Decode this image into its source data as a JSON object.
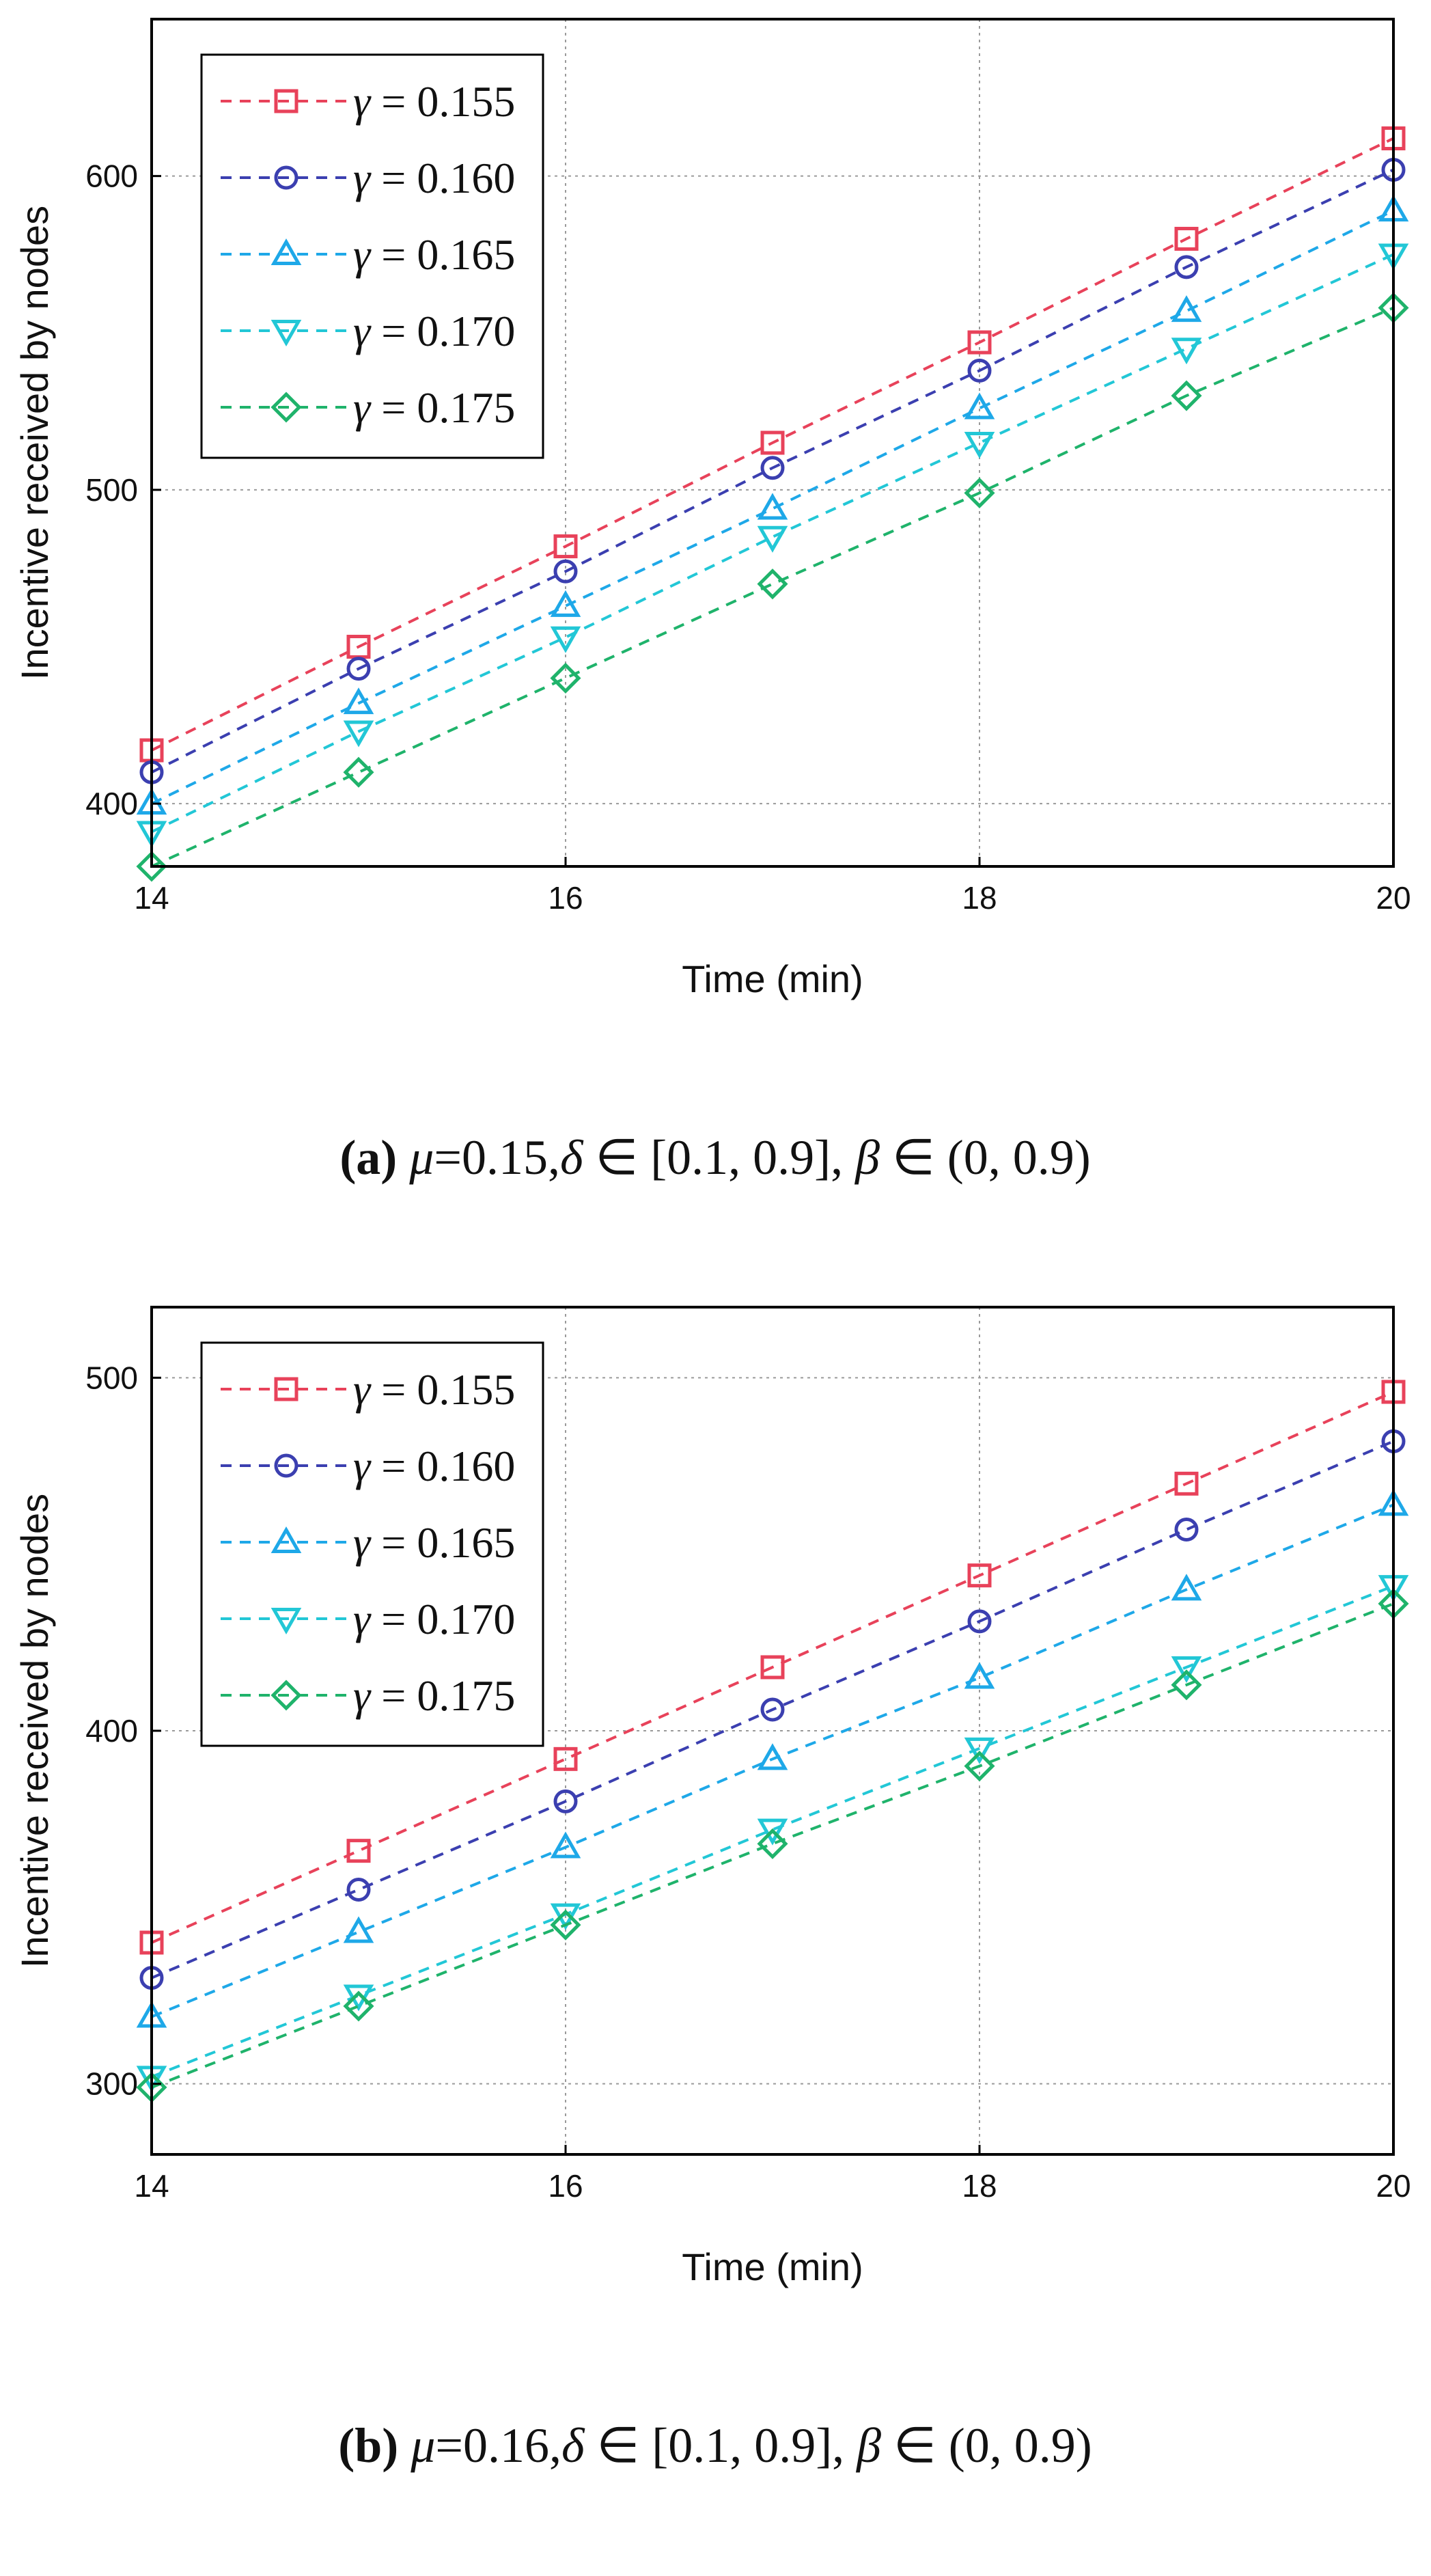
{
  "chart_data": [
    {
      "type": "line",
      "panel": "a",
      "caption": {
        "label": "(a)",
        "mu_symbol": "μ",
        "mu_rest": "=0.15,",
        "delta_symbol": "δ",
        "delta_rest": " ∈ [0.1, 0.9], ",
        "beta_symbol": "β",
        "beta_rest": " ∈ (0, 0.9)"
      },
      "xlabel": "Time (min)",
      "ylabel": "Incentive received by nodes",
      "xlim": [
        14,
        20
      ],
      "ylim": [
        380,
        650
      ],
      "xticks": [
        14,
        16,
        18,
        20
      ],
      "yticks": [
        400,
        500,
        600
      ],
      "grid": true,
      "legend_position": "top-left",
      "x": [
        14,
        15,
        16,
        17,
        18,
        19,
        20
      ],
      "series": [
        {
          "name": "γ = 0.155",
          "gamma": "γ",
          "value_label": " = 0.155",
          "color": "#e8425a",
          "marker": "square",
          "values": [
            417,
            450,
            482,
            515,
            547,
            580,
            612
          ]
        },
        {
          "name": "γ = 0.160",
          "gamma": "γ",
          "value_label": " = 0.160",
          "color": "#3b3fb0",
          "marker": "circle",
          "values": [
            410,
            443,
            474,
            507,
            538,
            571,
            602
          ]
        },
        {
          "name": "γ = 0.165",
          "gamma": "γ",
          "value_label": " = 0.165",
          "color": "#1ea8e8",
          "marker": "triangle-up",
          "values": [
            400,
            432,
            463,
            494,
            526,
            557,
            589
          ]
        },
        {
          "name": "γ = 0.170",
          "gamma": "γ",
          "value_label": " = 0.170",
          "color": "#22c7d6",
          "marker": "triangle-down",
          "values": [
            391,
            423,
            453,
            485,
            515,
            545,
            575
          ]
        },
        {
          "name": "γ = 0.175",
          "gamma": "γ",
          "value_label": " = 0.175",
          "color": "#1fb36b",
          "marker": "diamond",
          "values": [
            380,
            410,
            440,
            470,
            499,
            530,
            558
          ]
        }
      ]
    },
    {
      "type": "line",
      "panel": "b",
      "caption": {
        "label": "(b)",
        "mu_symbol": "μ",
        "mu_rest": "=0.16,",
        "delta_symbol": "δ",
        "delta_rest": " ∈ [0.1, 0.9], ",
        "beta_symbol": "β",
        "beta_rest": " ∈ (0, 0.9)"
      },
      "xlabel": "Time (min)",
      "ylabel": "Incentive received by nodes",
      "xlim": [
        14,
        20
      ],
      "ylim": [
        280,
        520
      ],
      "xticks": [
        14,
        16,
        18,
        20
      ],
      "yticks": [
        300,
        400,
        500
      ],
      "grid": true,
      "legend_position": "top-left",
      "x": [
        14,
        15,
        16,
        17,
        18,
        19,
        20
      ],
      "series": [
        {
          "name": "γ = 0.155",
          "gamma": "γ",
          "value_label": " = 0.155",
          "color": "#e8425a",
          "marker": "square",
          "values": [
            340,
            366,
            392,
            418,
            444,
            470,
            496
          ]
        },
        {
          "name": "γ = 0.160",
          "gamma": "γ",
          "value_label": " = 0.160",
          "color": "#3b3fb0",
          "marker": "circle",
          "values": [
            330,
            355,
            380,
            406,
            431,
            457,
            482
          ]
        },
        {
          "name": "γ = 0.165",
          "gamma": "γ",
          "value_label": " = 0.165",
          "color": "#1ea8e8",
          "marker": "triangle-up",
          "values": [
            319,
            343,
            367,
            392,
            415,
            440,
            464
          ]
        },
        {
          "name": "γ = 0.170",
          "gamma": "γ",
          "value_label": " = 0.170",
          "color": "#22c7d6",
          "marker": "triangle-down",
          "values": [
            302,
            325,
            348,
            372,
            395,
            418,
            441
          ]
        },
        {
          "name": "γ = 0.175",
          "gamma": "γ",
          "value_label": " = 0.175",
          "color": "#1fb36b",
          "marker": "diamond",
          "values": [
            299,
            322,
            345,
            368,
            390,
            413,
            436
          ]
        }
      ]
    }
  ]
}
